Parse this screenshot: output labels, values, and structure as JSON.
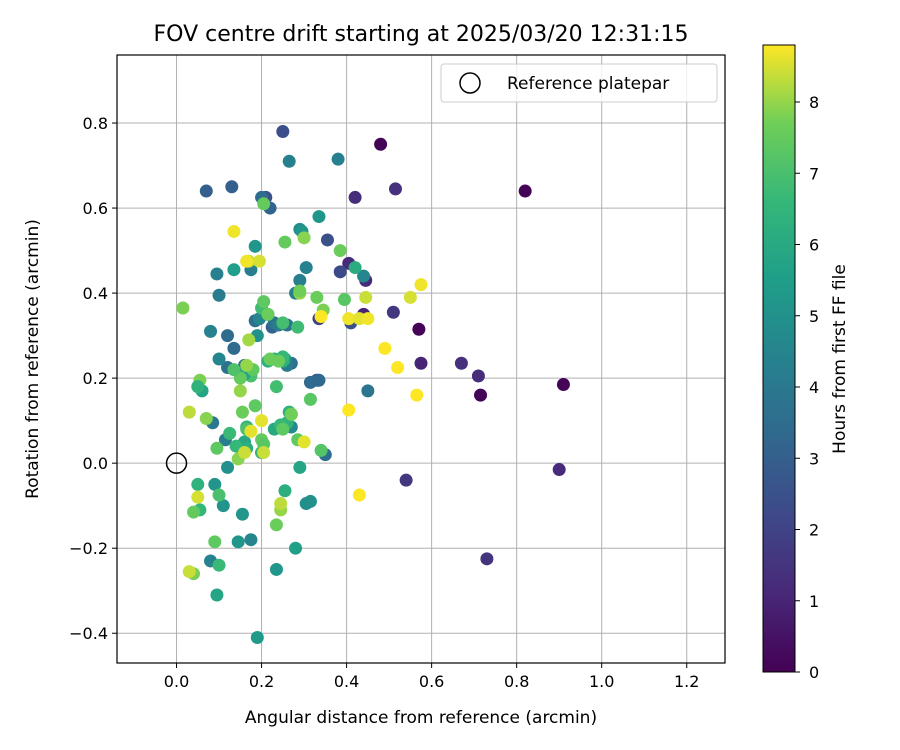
{
  "chart_data": {
    "type": "scatter",
    "title": "FOV centre drift starting at 2025/03/20 12:31:15",
    "xlabel": "Angular distance from reference (arcmin)",
    "ylabel": "Rotation from reference (arcmin)",
    "xlim": [
      -0.14,
      1.29
    ],
    "ylim": [
      -0.47,
      0.96
    ],
    "xticks": [
      0.0,
      0.2,
      0.4,
      0.6,
      0.8,
      1.0,
      1.2
    ],
    "xtick_labels": [
      "0.0",
      "0.2",
      "0.4",
      "0.6",
      "0.8",
      "1.0",
      "1.2"
    ],
    "yticks": [
      -0.4,
      -0.2,
      0.0,
      0.2,
      0.4,
      0.6,
      0.8
    ],
    "ytick_labels": [
      "−0.4",
      "−0.2",
      "0.0",
      "0.2",
      "0.4",
      "0.6",
      "0.8"
    ],
    "grid": true,
    "legend": {
      "placement": "top-right",
      "entries": [
        "Reference platepar"
      ]
    },
    "reference_point": {
      "x": 0.0,
      "y": 0.0
    },
    "colorbar": {
      "label": "Hours from first FF file",
      "colormap": "viridis",
      "range": [
        0,
        8.8
      ],
      "ticks": [
        0,
        1,
        2,
        3,
        4,
        5,
        6,
        7,
        8
      ],
      "tick_labels": [
        "0",
        "1",
        "2",
        "3",
        "4",
        "5",
        "6",
        "7",
        "8"
      ]
    },
    "series": [
      {
        "x": [
          0.82,
          0.48,
          0.91,
          0.57,
          0.715,
          0.9,
          0.73,
          0.42,
          0.515,
          0.445,
          0.44,
          0.575,
          0.67,
          0.71,
          0.54,
          0.405,
          0.51,
          0.335,
          0.33,
          0.385,
          0.41,
          0.25,
          0.21,
          0.355,
          0.07,
          0.13,
          0.22,
          0.44,
          0.315,
          0.27,
          0.225,
          0.335,
          0.2,
          0.185,
          0.23,
          0.12,
          0.135,
          0.16,
          0.29,
          0.28,
          0.305,
          0.38,
          0.265,
          0.45,
          0.35,
          0.095,
          0.1,
          0.24,
          0.26,
          0.085,
          0.12,
          0.175,
          0.195,
          0.215,
          0.26,
          0.29,
          0.08,
          0.1,
          0.185,
          0.115,
          0.08,
          0.2,
          0.27,
          0.295,
          0.335,
          0.135,
          0.255,
          0.175,
          0.315,
          0.305,
          0.19,
          0.42,
          0.25,
          0.23,
          0.12,
          0.09,
          0.11,
          0.145,
          0.155,
          0.16,
          0.165,
          0.2,
          0.215,
          0.235,
          0.25,
          0.26,
          0.06,
          0.05,
          0.095,
          0.165,
          0.14,
          0.175,
          0.28,
          0.255,
          0.235,
          0.265,
          0.29,
          0.245,
          0.19,
          0.16,
          0.055,
          0.34,
          0.2,
          0.23,
          0.25,
          0.315,
          0.285,
          0.345,
          0.385,
          0.395,
          0.205,
          0.255,
          0.29,
          0.27,
          0.3,
          0.33,
          0.205,
          0.18,
          0.165,
          0.215,
          0.17,
          0.055,
          0.04,
          0.095,
          0.15,
          0.185,
          0.2,
          0.145,
          0.125,
          0.05,
          0.1,
          0.165,
          0.135,
          0.22,
          0.24,
          0.29,
          0.25,
          0.27,
          0.285,
          0.235,
          0.1,
          0.09,
          0.155,
          0.205,
          0.15,
          0.245,
          0.04,
          0.03,
          0.015,
          0.07,
          0.175,
          0.17,
          0.195,
          0.205,
          0.16,
          0.3,
          0.34,
          0.405,
          0.43,
          0.445,
          0.49,
          0.52,
          0.55,
          0.575,
          0.565,
          0.45,
          0.405,
          0.43,
          0.165,
          0.135,
          0.245,
          0.05,
          0.03,
          0.2
        ],
        "y": [
          0.64,
          0.75,
          0.185,
          0.315,
          0.16,
          -0.015,
          -0.225,
          0.625,
          0.645,
          0.43,
          0.35,
          0.235,
          0.235,
          0.205,
          -0.04,
          0.47,
          0.355,
          0.34,
          0.195,
          0.45,
          0.33,
          0.78,
          0.625,
          0.525,
          0.64,
          0.65,
          0.6,
          0.44,
          0.19,
          0.235,
          0.32,
          0.195,
          0.625,
          0.335,
          0.33,
          0.3,
          0.27,
          0.23,
          0.43,
          0.4,
          0.46,
          0.715,
          0.71,
          0.17,
          0.02,
          0.445,
          0.395,
          0.325,
          0.325,
          0.095,
          0.225,
          0.455,
          0.34,
          0.35,
          0.23,
          0.55,
          0.31,
          0.245,
          0.51,
          0.055,
          -0.23,
          0.025,
          0.085,
          0.545,
          0.58,
          0.455,
          0.245,
          -0.18,
          -0.09,
          -0.095,
          0.3,
          0.46,
          0.24,
          0.08,
          -0.01,
          -0.05,
          -0.1,
          -0.185,
          -0.12,
          0.05,
          0.085,
          0.025,
          0.24,
          0.18,
          0.25,
          0.095,
          0.17,
          -0.05,
          -0.31,
          0.035,
          0.04,
          0.205,
          -0.2,
          -0.065,
          -0.25,
          0.12,
          -0.01,
          0.09,
          -0.41,
          0.21,
          -0.11,
          0.03,
          0.365,
          0.245,
          0.33,
          0.15,
          0.32,
          0.36,
          0.5,
          0.385,
          0.61,
          0.52,
          0.4,
          0.115,
          0.53,
          0.39,
          0.38,
          0.22,
          0.23,
          0.35,
          0.29,
          0.195,
          -0.115,
          0.035,
          0.2,
          0.135,
          0.055,
          0.01,
          0.07,
          0.18,
          -0.075,
          0.08,
          0.22,
          0.245,
          0.24,
          0.405,
          0.08,
          0.115,
          0.055,
          -0.145,
          -0.24,
          -0.185,
          0.12,
          0.045,
          0.17,
          -0.11,
          -0.26,
          0.12,
          0.365,
          0.105,
          0.075,
          0.475,
          0.475,
          0.025,
          0.025,
          0.05,
          0.345,
          0.34,
          0.34,
          0.39,
          0.27,
          0.225,
          0.39,
          0.42,
          0.16,
          0.34,
          0.125,
          -0.075,
          0.475,
          0.545,
          -0.095,
          -0.08,
          -0.255,
          0.1
        ],
        "hours": [
          0.1,
          0.1,
          0.1,
          0.1,
          0.1,
          1.2,
          1.5,
          1.3,
          1.4,
          1.2,
          1.0,
          1.0,
          1.4,
          1.3,
          1.6,
          1.2,
          1.6,
          2.0,
          2.1,
          2.2,
          2.5,
          2.4,
          2.5,
          2.5,
          3.0,
          3.0,
          3.2,
          4.6,
          3.4,
          3.7,
          3.1,
          3.3,
          3.5,
          3.6,
          3.8,
          3.5,
          3.4,
          3.8,
          4.2,
          4.3,
          4.4,
          4.3,
          4.3,
          3.9,
          3.5,
          4.3,
          4.1,
          4.1,
          3.8,
          4.0,
          3.7,
          4.2,
          4.6,
          4.1,
          4.1,
          4.8,
          4.4,
          4.5,
          5.2,
          4.2,
          4.4,
          4.4,
          4.7,
          5.2,
          5.2,
          5.5,
          5.3,
          4.6,
          5.0,
          4.9,
          5.0,
          6.1,
          6.2,
          6.0,
          5.0,
          5.1,
          5.1,
          5.2,
          5.2,
          5.9,
          6.3,
          6.6,
          6.3,
          6.9,
          6.6,
          6.4,
          5.8,
          6.4,
          5.8,
          6.2,
          6.6,
          7.0,
          5.6,
          6.2,
          5.2,
          6.3,
          5.8,
          6.6,
          5.4,
          5.8,
          6.6,
          7.2,
          6.8,
          6.4,
          6.9,
          7.3,
          6.8,
          7.8,
          7.6,
          7.3,
          7.5,
          7.5,
          8.0,
          7.2,
          7.9,
          7.6,
          7.4,
          7.4,
          8.0,
          7.6,
          8.1,
          7.8,
          7.5,
          7.4,
          7.5,
          7.4,
          7.5,
          7.9,
          6.7,
          6.4,
          7.0,
          7.1,
          7.1,
          7.6,
          7.6,
          7.7,
          7.4,
          7.7,
          7.4,
          7.6,
          6.7,
          7.4,
          7.6,
          7.3,
          8.0,
          8.0,
          7.8,
          8.3,
          7.8,
          7.9,
          8.6,
          8.3,
          8.5,
          8.4,
          8.4,
          8.6,
          8.8,
          8.7,
          8.6,
          8.4,
          8.8,
          8.8,
          8.5,
          8.7,
          8.8,
          8.7,
          8.8,
          8.8,
          8.7,
          8.7,
          8.3,
          8.5,
          8.4,
          8.6
        ]
      }
    ]
  }
}
